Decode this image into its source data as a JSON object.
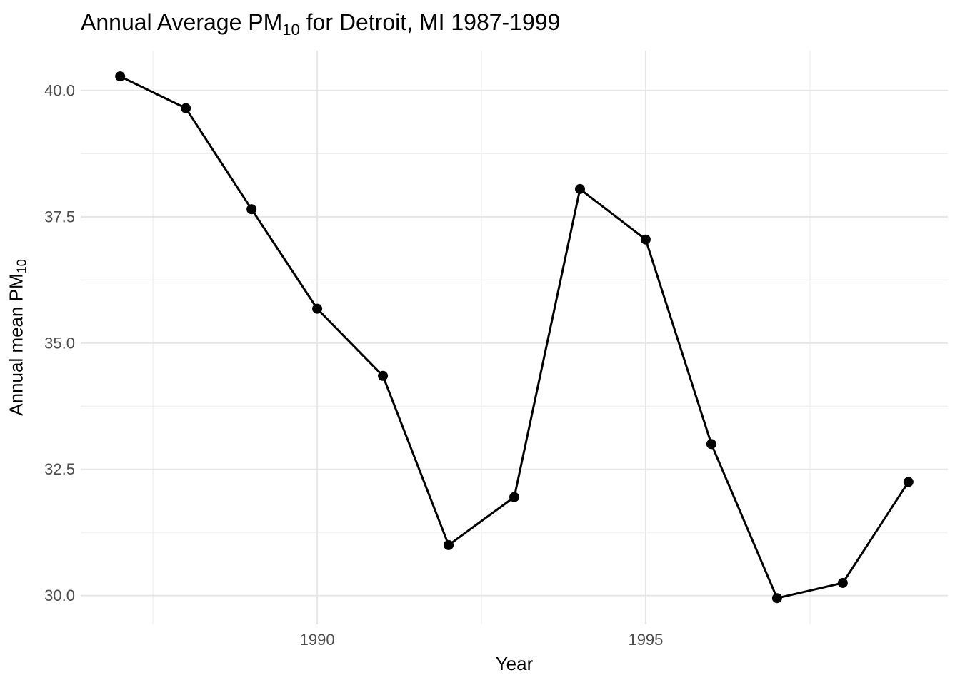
{
  "page": {
    "background": "#FFFFFF"
  },
  "title": {
    "prefix": "Annual Average PM",
    "subscript": "10",
    "suffix": " for Detroit, MI 1987-1999"
  },
  "x_axis_title": "Year",
  "y_axis_title": {
    "prefix": "Annual mean PM",
    "subscript": "10"
  },
  "chart_data": {
    "type": "line",
    "title": "Annual Average PM10 for Detroit, MI 1987-1999",
    "xlabel": "Year",
    "ylabel": "Annual mean PM10",
    "series": [
      {
        "name": "Annual mean PM10",
        "x": [
          1987,
          1988,
          1989,
          1990,
          1991,
          1992,
          1993,
          1994,
          1995,
          1996,
          1997,
          1998,
          1999
        ],
        "values": [
          40.28,
          39.65,
          37.65,
          35.68,
          34.35,
          31.0,
          31.95,
          38.05,
          37.05,
          33.0,
          29.95,
          30.25,
          32.25
        ]
      }
    ],
    "xlim": [
      1986.4,
      1999.6
    ],
    "ylim": [
      29.43,
      40.79
    ],
    "x_ticks": [
      {
        "value": 1990,
        "label": "1990"
      },
      {
        "value": 1995,
        "label": "1995"
      }
    ],
    "x_minor_gridlines": [
      1987.5,
      1992.5,
      1997.5
    ],
    "y_ticks": [
      {
        "value": 30.0,
        "label": "30.0"
      },
      {
        "value": 32.5,
        "label": "32.5"
      },
      {
        "value": 35.0,
        "label": "35.0"
      },
      {
        "value": 37.5,
        "label": "37.5"
      },
      {
        "value": 40.0,
        "label": "40.0"
      }
    ],
    "y_minor_gridlines": [
      31.25,
      33.75,
      36.25,
      38.75
    ],
    "grid": true,
    "legend": "none",
    "marker": "filled-circle",
    "colors": {
      "line": "#000000",
      "point": "#000000",
      "gridline_major": "#E6E6E6",
      "gridline_minor": "#EFEFEF",
      "tick_text": "#4D4D4D",
      "axis_title_text": "#000000",
      "title_text": "#000000"
    }
  }
}
